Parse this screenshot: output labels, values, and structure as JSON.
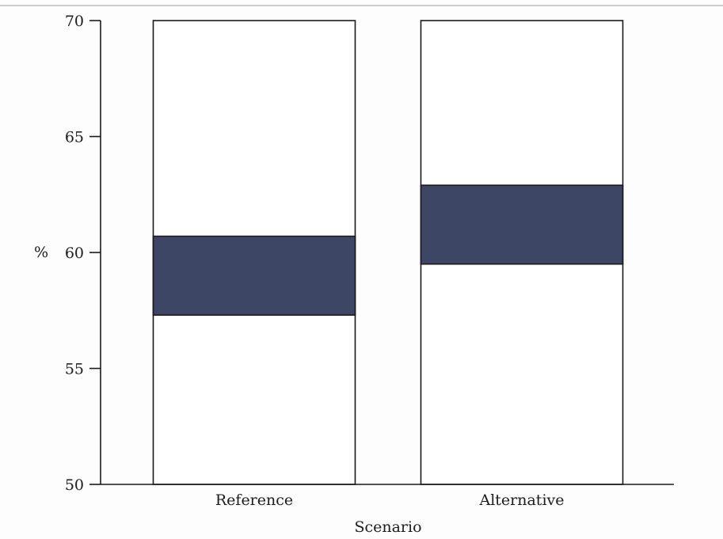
{
  "chart_data": {
    "type": "bar",
    "subtype": "floating-range",
    "categories": [
      "Reference",
      "Alternative"
    ],
    "series": [
      {
        "values": [
          [
            57.3,
            60.7
          ],
          [
            59.5,
            62.9
          ]
        ],
        "color": "#3e4666"
      }
    ],
    "column_range": [
      50,
      70
    ],
    "xlabel": "Scenario",
    "ylabel": "%",
    "ylim": [
      50,
      70
    ],
    "yticks": [
      50,
      55,
      60,
      65,
      70
    ],
    "grid": false
  }
}
